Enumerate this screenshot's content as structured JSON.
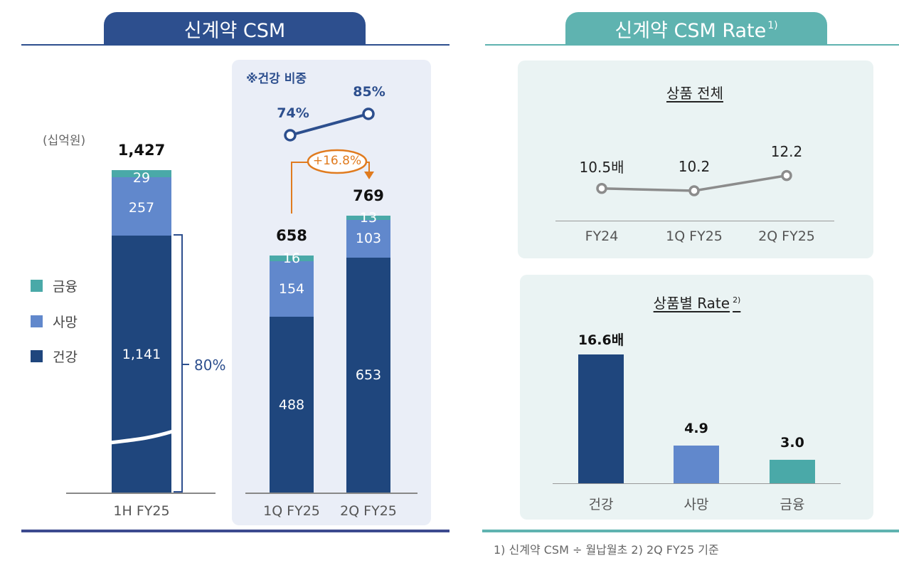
{
  "left": {
    "title": "신계약 CSM",
    "unit": "(십억원)",
    "legend": [
      {
        "label": "금융",
        "color": "#4aa9a8"
      },
      {
        "label": "사망",
        "color": "#6188cc"
      },
      {
        "label": "건강",
        "color": "#1f467d"
      }
    ],
    "share_box": {
      "title": "※건강 비중",
      "values": [
        "74%",
        "85%"
      ],
      "growth": "+16.8%"
    },
    "bracket_label": "80%"
  },
  "right": {
    "title": "신계약 CSM Rate",
    "title_sup": "1)",
    "overall": {
      "title": "상품 전체"
    },
    "by_product": {
      "title": "상품별 Rate",
      "title_sup": "2)"
    }
  },
  "footnote": "1) 신계약 CSM ÷ 월납월초   2) 2Q FY25 기준",
  "colors": {
    "navy_tab": "#2d4f8e",
    "teal_tab": "#5fb3b0",
    "health": "#1f467d",
    "death": "#6188cc",
    "finance": "#4aa9a8",
    "orange": "#e07b1f",
    "gray_line": "#8c8c8c"
  },
  "chart_data": [
    {
      "type": "bar",
      "stacked": true,
      "categories": [
        "1H FY25"
      ],
      "series": [
        {
          "name": "건강",
          "values": [
            1141
          ]
        },
        {
          "name": "사망",
          "values": [
            257
          ]
        },
        {
          "name": "금융",
          "values": [
            29
          ]
        }
      ],
      "totals": [
        "1,427"
      ],
      "labels": {
        "건강": [
          "1,141"
        ],
        "사망": [
          "257"
        ],
        "금융": [
          "29"
        ]
      },
      "axis_break": true
    },
    {
      "type": "bar",
      "stacked": true,
      "categories": [
        "1Q FY25",
        "2Q FY25"
      ],
      "series": [
        {
          "name": "건강",
          "values": [
            488,
            653
          ]
        },
        {
          "name": "사망",
          "values": [
            154,
            103
          ]
        },
        {
          "name": "금융",
          "values": [
            16,
            13
          ]
        }
      ],
      "totals": [
        "658",
        "769"
      ],
      "ylim": [
        0,
        780
      ]
    },
    {
      "type": "line",
      "x": [
        "FY24",
        "1Q FY25",
        "2Q FY25"
      ],
      "values": [
        10.5,
        10.2,
        12.2
      ],
      "labels": [
        "10.5배",
        "10.2",
        "12.2"
      ],
      "ylim": [
        0,
        15
      ]
    },
    {
      "type": "bar",
      "categories": [
        "건강",
        "사망",
        "금융"
      ],
      "values": [
        16.6,
        4.9,
        3.0
      ],
      "labels": [
        "16.6배",
        "4.9",
        "3.0"
      ],
      "ylim": [
        0,
        16.6
      ]
    }
  ]
}
